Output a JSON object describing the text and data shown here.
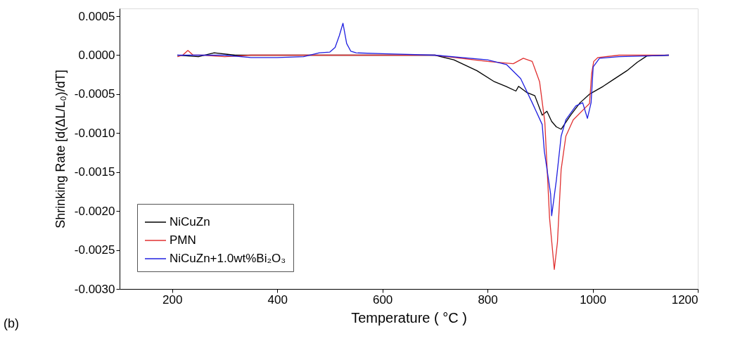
{
  "chart_data": {
    "type": "line",
    "xlabel": "Temperature ( °C )",
    "ylabel": "Shrinking Rate [d(ΔL/L₀)/dT]",
    "annotations": [
      "(b)"
    ],
    "xlim": [
      100,
      1200
    ],
    "xticks": [
      200,
      400,
      600,
      800,
      1000,
      1200
    ],
    "ylim": [
      -0.003,
      0.0006
    ],
    "yticks": [
      {
        "value": 0.0005,
        "label": "0.0005"
      },
      {
        "value": 0,
        "label": "0.0000"
      },
      {
        "value": -0.0005,
        "label": "-0.0005"
      },
      {
        "value": -0.001,
        "label": "-0.0010"
      },
      {
        "value": -0.0015,
        "label": "-0.0015"
      },
      {
        "value": -0.002,
        "label": "-0.0020"
      },
      {
        "value": -0.0025,
        "label": "-0.0025"
      },
      {
        "value": -0.003,
        "label": "-0.0030"
      }
    ],
    "grid": false,
    "legend": "bottom left",
    "marker": "none",
    "line_style": "solid",
    "series": [
      {
        "name": "NiCuZn",
        "color": "#000000",
        "x": [
          210,
          250,
          280,
          320,
          400,
          500,
          600,
          700,
          736,
          780,
          813,
          835,
          854,
          859,
          875,
          890,
          904,
          913,
          922,
          931,
          940,
          958,
          976,
          994,
          1020,
          1040,
          1065,
          1085,
          1103,
          1145
        ],
        "values": [
          0.0,
          -2e-05,
          3e-05,
          0.0,
          0.0,
          0.0,
          0.0,
          0.0,
          -6e-05,
          -0.0002,
          -0.00034,
          -0.0004,
          -0.00046,
          -0.0004,
          -0.00048,
          -0.00052,
          -0.00077,
          -0.00072,
          -0.00085,
          -0.00092,
          -0.00095,
          -0.00077,
          -0.00061,
          -0.0005,
          -0.0004,
          -0.00031,
          -0.0002,
          -9e-05,
          -1e-05,
          0.0
        ]
      },
      {
        "name": "PMN",
        "color": "#e03030",
        "x": [
          210,
          220,
          230,
          240,
          260,
          300,
          350,
          400,
          500,
          600,
          700,
          800,
          849,
          868,
          885,
          899,
          909,
          918,
          927,
          933,
          940,
          949,
          963,
          985,
          994,
          998,
          1002,
          1010,
          1050,
          1100,
          1145
        ],
        "values": [
          -2e-05,
          0.0,
          6e-05,
          0.0,
          0.0,
          -2e-05,
          0.0,
          0.0,
          0.0,
          0.0,
          0.0,
          -8e-05,
          -0.00011,
          -4e-05,
          -8e-05,
          -0.00034,
          -0.00086,
          -0.00209,
          -0.00275,
          -0.0024,
          -0.00147,
          -0.00104,
          -0.00083,
          -0.00068,
          -0.00062,
          -0.00024,
          -8e-05,
          -3e-05,
          0.0,
          0.0,
          0.0
        ]
      },
      {
        "name": "NiCuZn+1.0wt%Bi₂O₃",
        "color": "#2020e0",
        "x": [
          210,
          300,
          350,
          400,
          450,
          480,
          500,
          510,
          518,
          525,
          532,
          540,
          550,
          600,
          700,
          800,
          836,
          863,
          885,
          904,
          908,
          920,
          922,
          931,
          940,
          949,
          968,
          981,
          990,
          997,
          1001,
          1013,
          1050,
          1100,
          1145
        ],
        "values": [
          0.0,
          0.0,
          -3e-05,
          -3e-05,
          -2e-05,
          3e-05,
          4e-05,
          0.0001,
          0.00025,
          0.00041,
          0.00015,
          5e-05,
          3e-05,
          2e-05,
          0.0,
          -6e-05,
          -0.00012,
          -0.0003,
          -0.00061,
          -0.00089,
          -0.00123,
          -0.00178,
          -0.00206,
          -0.0016,
          -0.00104,
          -0.00083,
          -0.00065,
          -0.00061,
          -0.00081,
          -0.00061,
          -0.00015,
          -4e-05,
          -2e-05,
          -1e-05,
          0.0
        ]
      }
    ]
  }
}
